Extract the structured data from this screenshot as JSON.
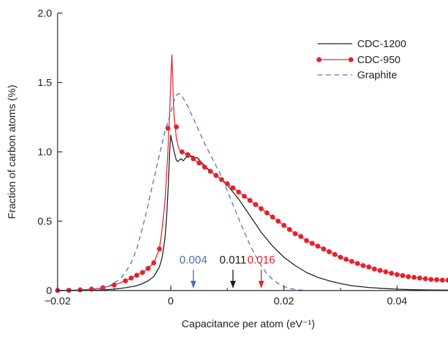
{
  "chart_data": {
    "type": "line",
    "xlabel": "Capacitance per atom (eV⁻¹)",
    "ylabel": "Fraction of carbon atoms (%)",
    "xlim": [
      -0.02,
      0.049
    ],
    "ylim": [
      0,
      2.0
    ],
    "x_ticks": [
      -0.02,
      0,
      0.02,
      0.04
    ],
    "x_tick_labels": [
      "−0.02",
      "0",
      "0.02",
      "0.04"
    ],
    "y_ticks": [
      0,
      0.5,
      1.0,
      1.5,
      2.0
    ],
    "y_tick_labels": [
      "0",
      "0.5",
      "1.0",
      "1.5",
      "2.0"
    ],
    "grid": false,
    "legend_position": "top-right",
    "series": [
      {
        "name": "CDC-1200",
        "color": "#1a1a1a",
        "style": "solid",
        "x": [
          -0.02,
          -0.015,
          -0.012,
          -0.01,
          -0.008,
          -0.006,
          -0.005,
          -0.004,
          -0.003,
          -0.002,
          -0.0015,
          -0.001,
          -0.0007,
          -0.0004,
          -0.0002,
          0,
          0.0002,
          0.0005,
          0.0008,
          0.001,
          0.0013,
          0.0016,
          0.0019,
          0.0022,
          0.0025,
          0.0028,
          0.0031,
          0.0034,
          0.0037,
          0.004,
          0.0043,
          0.0046,
          0.005,
          0.0055,
          0.006,
          0.007,
          0.008,
          0.009,
          0.01,
          0.011,
          0.012,
          0.013,
          0.014,
          0.015,
          0.016,
          0.018,
          0.02,
          0.022,
          0.024,
          0.026,
          0.028,
          0.03,
          0.032,
          0.035,
          0.038,
          0.04,
          0.043,
          0.046,
          0.049
        ],
        "y": [
          0,
          0,
          0.005,
          0.01,
          0.02,
          0.035,
          0.05,
          0.07,
          0.1,
          0.17,
          0.24,
          0.38,
          0.55,
          0.78,
          1.0,
          1.12,
          1.08,
          1.02,
          0.97,
          0.94,
          0.93,
          0.945,
          0.95,
          0.935,
          0.95,
          0.965,
          0.96,
          0.975,
          0.965,
          0.97,
          0.955,
          0.96,
          0.945,
          0.92,
          0.9,
          0.86,
          0.83,
          0.8,
          0.76,
          0.71,
          0.66,
          0.6,
          0.54,
          0.48,
          0.42,
          0.32,
          0.24,
          0.18,
          0.13,
          0.095,
          0.07,
          0.05,
          0.035,
          0.022,
          0.014,
          0.01,
          0.006,
          0.004,
          0.003
        ]
      },
      {
        "name": "CDC-950",
        "color": "#e8202a",
        "style": "solid-markers",
        "x": [
          -0.02,
          -0.018,
          -0.016,
          -0.014,
          -0.012,
          -0.01,
          -0.008,
          -0.007,
          -0.006,
          -0.005,
          -0.004,
          -0.003,
          -0.002,
          -0.0015,
          -0.001,
          -0.0005,
          -0.0003,
          0,
          0.0002,
          0.0004,
          0.0006,
          0.0008,
          0.001,
          0.0012,
          0.0014,
          0.0016,
          0.0018,
          0.002,
          0.0025,
          0.003,
          0.0035,
          0.004,
          0.005,
          0.006,
          0.007,
          0.008,
          0.009,
          0.01,
          0.011,
          0.012,
          0.013,
          0.014,
          0.015,
          0.016,
          0.017,
          0.018,
          0.019,
          0.02,
          0.021,
          0.022,
          0.023,
          0.024,
          0.025,
          0.026,
          0.027,
          0.028,
          0.029,
          0.03,
          0.031,
          0.032,
          0.033,
          0.034,
          0.035,
          0.036,
          0.037,
          0.038,
          0.039,
          0.04,
          0.041,
          0.042,
          0.043,
          0.044,
          0.045,
          0.046,
          0.047,
          0.048,
          0.049
        ],
        "y": [
          0,
          0.002,
          0.005,
          0.01,
          0.02,
          0.04,
          0.07,
          0.09,
          0.11,
          0.13,
          0.16,
          0.2,
          0.3,
          0.45,
          0.65,
          1.0,
          1.17,
          1.5,
          1.7,
          1.45,
          1.25,
          1.18,
          1.1,
          1.06,
          1.03,
          1.01,
          1.0,
          1.0,
          0.99,
          0.98,
          0.965,
          0.95,
          0.92,
          0.89,
          0.86,
          0.83,
          0.8,
          0.77,
          0.74,
          0.71,
          0.68,
          0.65,
          0.62,
          0.59,
          0.56,
          0.53,
          0.5,
          0.47,
          0.44,
          0.41,
          0.39,
          0.36,
          0.34,
          0.32,
          0.3,
          0.28,
          0.26,
          0.24,
          0.225,
          0.21,
          0.195,
          0.18,
          0.17,
          0.155,
          0.145,
          0.135,
          0.125,
          0.115,
          0.108,
          0.1,
          0.095,
          0.09,
          0.085,
          0.08,
          0.078,
          0.075,
          0.075
        ],
        "marker_x": [
          -0.02,
          -0.018,
          -0.016,
          -0.014,
          -0.012,
          -0.01,
          -0.008,
          -0.007,
          -0.006,
          -0.005,
          -0.004,
          -0.003,
          -0.002,
          -0.0005,
          0.001,
          0.002,
          0.003,
          0.004,
          0.005,
          0.006,
          0.007,
          0.008,
          0.009,
          0.01,
          0.011,
          0.012,
          0.013,
          0.014,
          0.015,
          0.016,
          0.017,
          0.018,
          0.019,
          0.02,
          0.021,
          0.022,
          0.023,
          0.024,
          0.025,
          0.026,
          0.027,
          0.028,
          0.029,
          0.03,
          0.031,
          0.032,
          0.033,
          0.034,
          0.035,
          0.036,
          0.037,
          0.038,
          0.039,
          0.04,
          0.041,
          0.042,
          0.043,
          0.044,
          0.045,
          0.046,
          0.047,
          0.048,
          0.049
        ],
        "marker_y": [
          0,
          0.002,
          0.005,
          0.01,
          0.02,
          0.04,
          0.07,
          0.09,
          0.11,
          0.13,
          0.16,
          0.2,
          0.3,
          1.17,
          1.18,
          1.0,
          0.98,
          0.95,
          0.92,
          0.89,
          0.86,
          0.83,
          0.8,
          0.77,
          0.74,
          0.71,
          0.68,
          0.65,
          0.62,
          0.59,
          0.56,
          0.53,
          0.5,
          0.47,
          0.44,
          0.41,
          0.39,
          0.36,
          0.34,
          0.32,
          0.3,
          0.28,
          0.26,
          0.24,
          0.225,
          0.21,
          0.195,
          0.18,
          0.17,
          0.155,
          0.145,
          0.135,
          0.125,
          0.115,
          0.108,
          0.1,
          0.095,
          0.09,
          0.085,
          0.08,
          0.078,
          0.075,
          0.075
        ]
      },
      {
        "name": "Graphite",
        "color": "#4a6fb8",
        "style": "dashed",
        "x": [
          -0.02,
          -0.016,
          -0.013,
          -0.011,
          -0.009,
          -0.008,
          -0.007,
          -0.006,
          -0.005,
          -0.004,
          -0.003,
          -0.002,
          -0.001,
          0,
          0.0005,
          0.001,
          0.0015,
          0.002,
          0.003,
          0.004,
          0.005,
          0.006,
          0.007,
          0.008,
          0.009,
          0.01,
          0.011,
          0.012,
          0.013,
          0.014,
          0.015,
          0.016,
          0.017,
          0.018,
          0.019,
          0.02,
          0.021,
          0.022,
          0.023,
          0.024
        ],
        "y": [
          0,
          0.002,
          0.01,
          0.03,
          0.08,
          0.13,
          0.2,
          0.3,
          0.45,
          0.62,
          0.8,
          0.98,
          1.15,
          1.28,
          1.36,
          1.41,
          1.42,
          1.4,
          1.33,
          1.24,
          1.15,
          1.06,
          0.98,
          0.9,
          0.82,
          0.72,
          0.62,
          0.52,
          0.42,
          0.33,
          0.25,
          0.18,
          0.12,
          0.08,
          0.05,
          0.03,
          0.015,
          0.008,
          0.003,
          0
        ]
      }
    ],
    "annotations": [
      {
        "text": "0.004",
        "x": 0.004,
        "color": "#4a6fb8"
      },
      {
        "text": "0.011",
        "x": 0.011,
        "color": "#1a1a1a"
      },
      {
        "text": "0.016",
        "x": 0.016,
        "color": "#e8202a"
      }
    ]
  }
}
